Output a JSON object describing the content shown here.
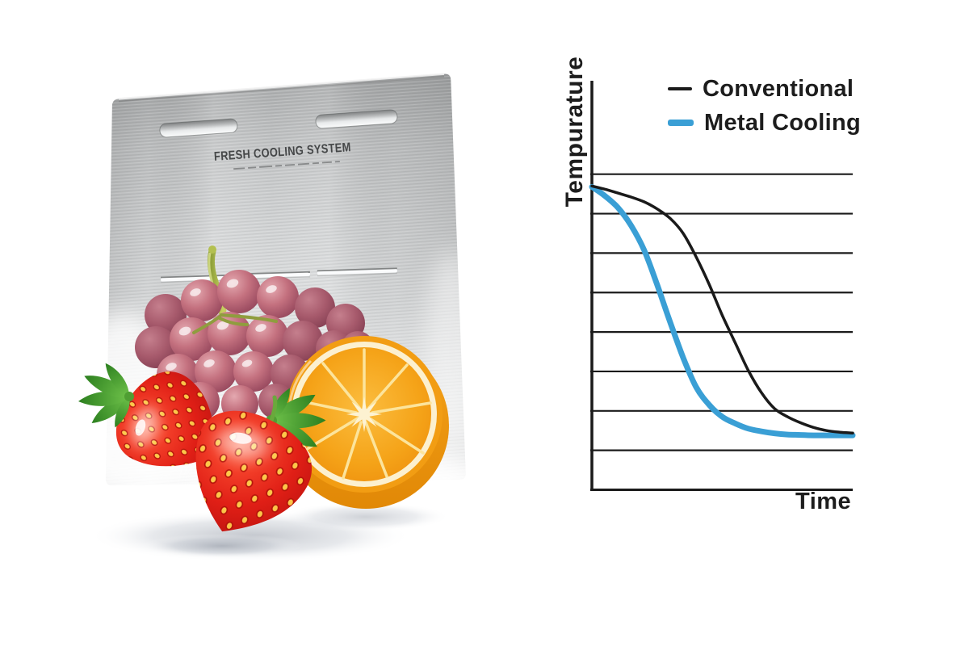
{
  "panel_left": {
    "plate_label": "FRESH COOLING SYSTEM"
  },
  "chart": {
    "ylabel": "Tempurature",
    "xlabel": "Time",
    "legend": [
      {
        "label": "Conventional",
        "color": "#1a1a1a",
        "swatch": "thin-dash"
      },
      {
        "label": "Metal Cooling",
        "color": "#3a9fd5",
        "swatch": "thick-dash"
      }
    ]
  },
  "chart_data": {
    "type": "line",
    "title": "",
    "xlabel": "Time",
    "ylabel": "Tempurature",
    "xlim": [
      0,
      10
    ],
    "ylim": [
      0,
      8
    ],
    "axis_ticks_labeled": false,
    "gridlines": {
      "horizontal_count": 8,
      "vertical": false
    },
    "legend_position": "top-right",
    "x": [
      0,
      0.5,
      1,
      1.5,
      2,
      2.5,
      3,
      3.5,
      4,
      4.5,
      5,
      5.5,
      6,
      6.5,
      7,
      7.5,
      8,
      8.5,
      9,
      9.5,
      10
    ],
    "series": [
      {
        "name": "Conventional",
        "color": "#1a1a1a",
        "stroke_width": 3.5,
        "values": [
          7.7,
          7.62,
          7.52,
          7.42,
          7.3,
          7.12,
          6.88,
          6.5,
          5.9,
          5.2,
          4.42,
          3.72,
          3.02,
          2.46,
          2.06,
          1.85,
          1.7,
          1.58,
          1.5,
          1.46,
          1.44
        ]
      },
      {
        "name": "Metal Cooling",
        "color": "#3a9fd5",
        "stroke_width": 7,
        "values": [
          7.68,
          7.45,
          7.15,
          6.7,
          6.08,
          5.2,
          4.25,
          3.35,
          2.6,
          2.15,
          1.85,
          1.68,
          1.55,
          1.48,
          1.43,
          1.4,
          1.39,
          1.38,
          1.38,
          1.38,
          1.38
        ]
      }
    ]
  },
  "colors": {
    "metal_cooling_blue": "#3a9fd5",
    "conventional_black": "#1a1a1a",
    "text_dark": "#1d1d1d",
    "plate_silver": "#cfd1d2",
    "strawberry_red": "#e01f16",
    "orange_flesh": "#f5a318",
    "grape_pink": "#b96379",
    "leaf_green": "#3f9b2e"
  }
}
